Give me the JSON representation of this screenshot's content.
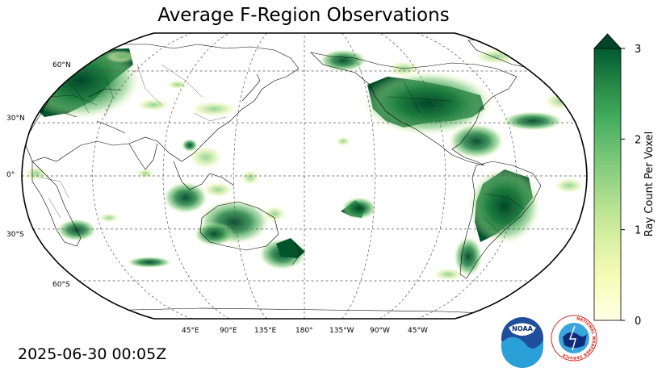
{
  "title": "Average F-Region Observations",
  "timestamp": "2025-06-30 00:05Z",
  "map": {
    "projection": "Robinson",
    "central_longitude": 180,
    "lat_labels": [
      "60°N",
      "30°N",
      "0°",
      "30°S",
      "60°S"
    ],
    "lon_labels": [
      "45°E",
      "90°E",
      "135°E",
      "180°",
      "135°W",
      "90°W",
      "45°W"
    ],
    "gridlines": true
  },
  "colorbar": {
    "label": "Ray Count Per Voxel",
    "ticks": [
      "0",
      "1",
      "2",
      "3"
    ],
    "min": 0,
    "max": 3,
    "extend": "max",
    "colormap": "YlGn",
    "colors": {
      "low": "#ffffe5",
      "mid": "#78c679",
      "high": "#004529"
    }
  },
  "logos": {
    "noaa": {
      "text": "NOAA"
    },
    "nws": {
      "text": "NATIONAL WEATHER SERVICE"
    }
  }
}
